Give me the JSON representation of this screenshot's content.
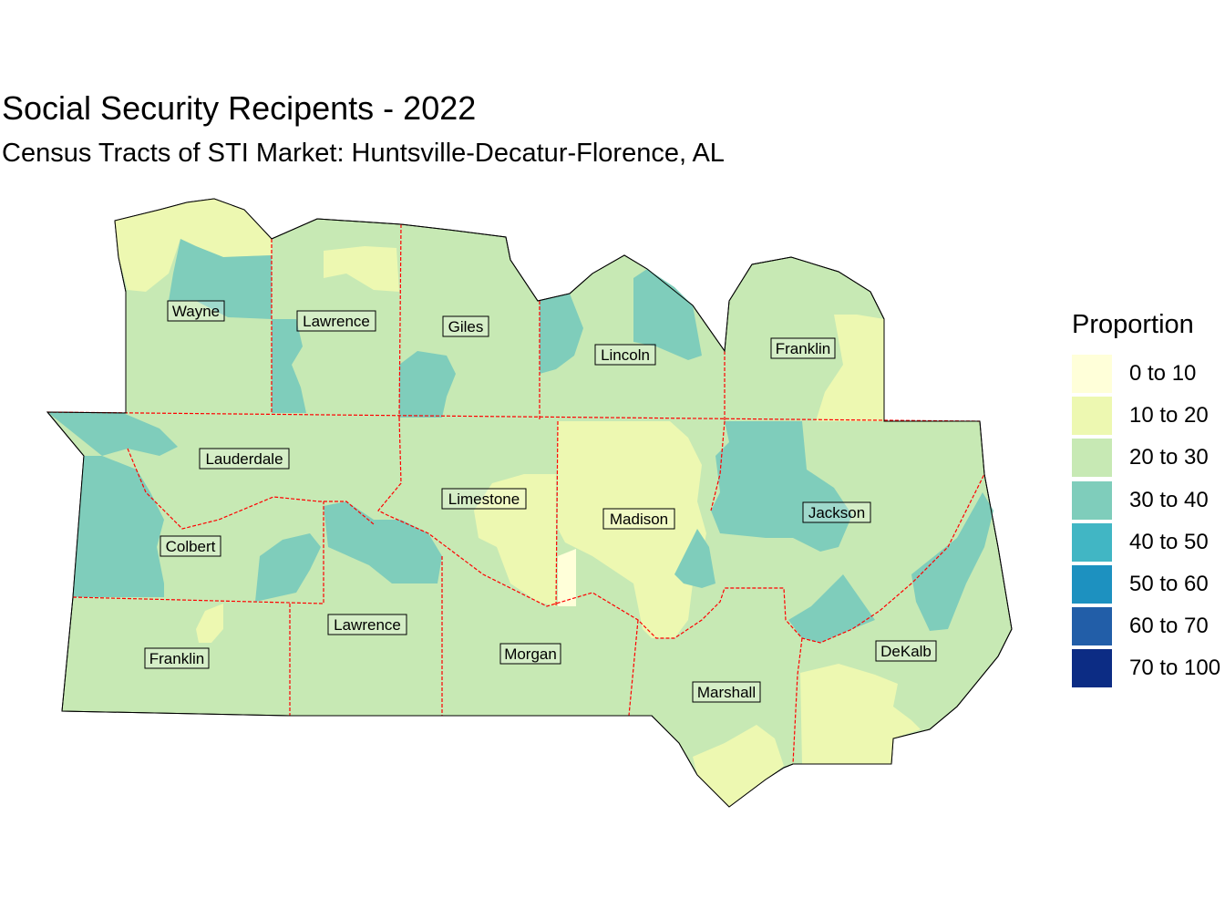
{
  "title": "Social Security Recipents - 2022",
  "subtitle": "Census Tracts of STI Market: Huntsville-Decatur-Florence, AL",
  "legend": {
    "title": "Proportion",
    "items": [
      {
        "label": "0 to 10",
        "color": "#ffffd9"
      },
      {
        "label": "10 to 20",
        "color": "#edf8b1"
      },
      {
        "label": "20 to 30",
        "color": "#c7e9b4"
      },
      {
        "label": "30 to 40",
        "color": "#7fcdbb"
      },
      {
        "label": "40 to 50",
        "color": "#41b6c4"
      },
      {
        "label": "50 to 60",
        "color": "#1d91c0"
      },
      {
        "label": "60 to 70",
        "color": "#225ea8"
      },
      {
        "label": "70 to 100",
        "color": "#0c2c84"
      }
    ]
  },
  "county_labels": {
    "wayne": "Wayne",
    "lawrence_tn": "Lawrence",
    "giles": "Giles",
    "lincoln": "Lincoln",
    "franklin_tn": "Franklin",
    "lauderdale": "Lauderdale",
    "limestone": "Limestone",
    "madison": "Madison",
    "jackson": "Jackson",
    "colbert": "Colbert",
    "lawrence_al": "Lawrence",
    "franklin_al": "Franklin",
    "morgan": "Morgan",
    "marshall": "Marshall",
    "dekalb": "DeKalb"
  },
  "colors": {
    "boundary": "#000000",
    "county_border": "#ff0000"
  }
}
